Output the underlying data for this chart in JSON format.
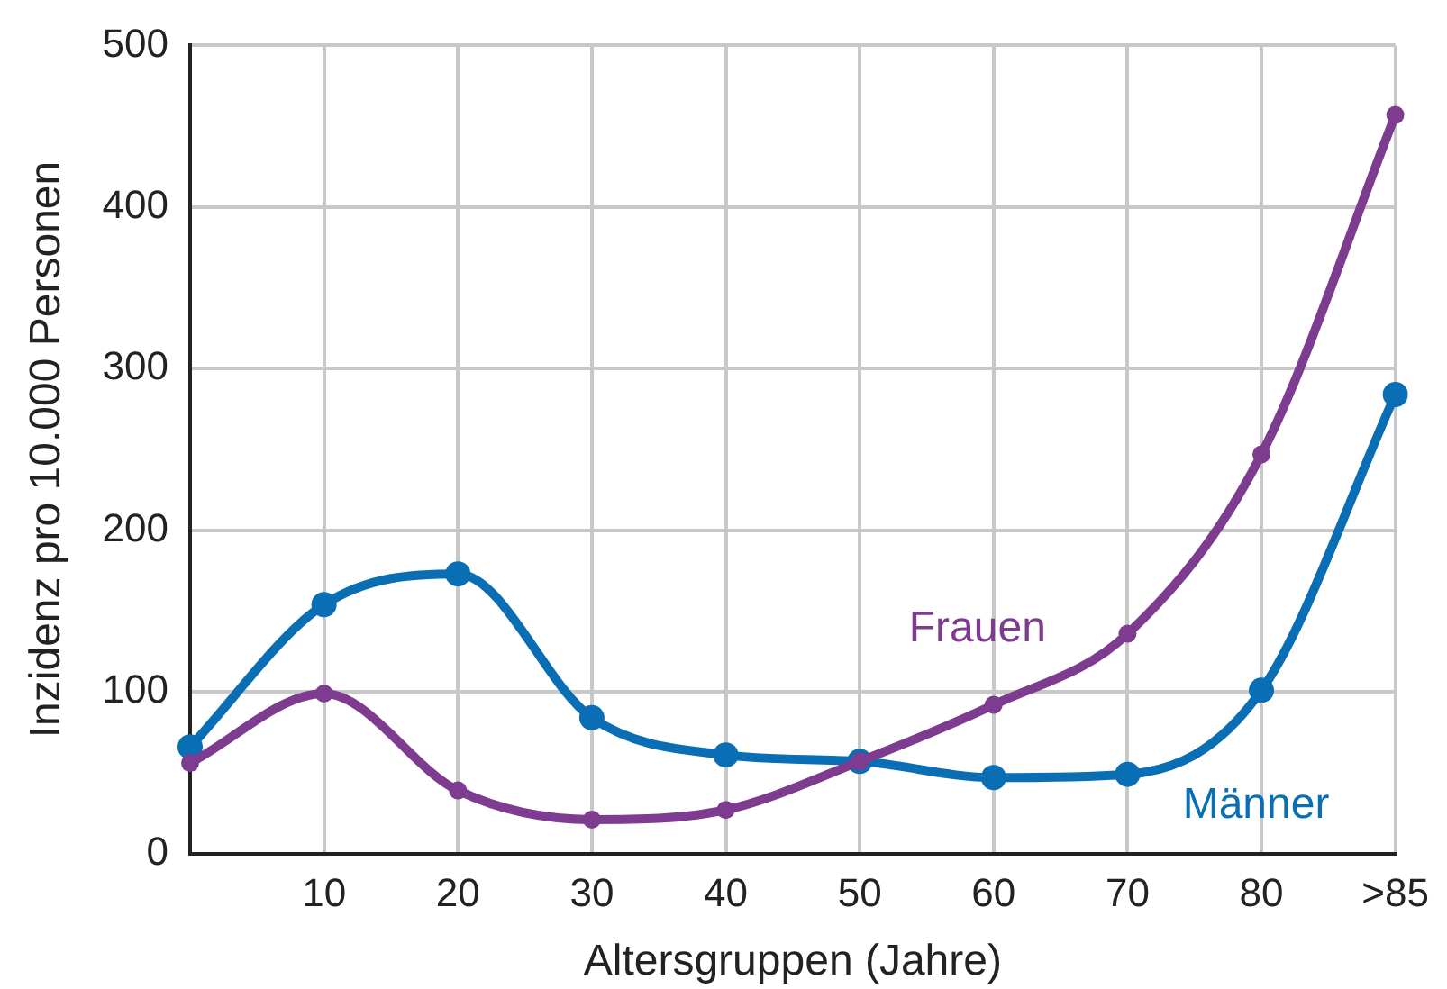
{
  "chart_data": {
    "type": "line",
    "xlabel": "Altersgruppen (Jahre)",
    "ylabel": "Inzidenz pro 10.000 Personen",
    "categories": [
      null,
      "10",
      "20",
      "30",
      "40",
      "50",
      "60",
      "70",
      "80",
      ">85"
    ],
    "ylim": [
      0,
      500
    ],
    "yticks": [
      0,
      100,
      200,
      300,
      400,
      500
    ],
    "grid": true,
    "legend": false,
    "marker": "circle",
    "line_style": "solid",
    "series": [
      {
        "name": "Frauen",
        "color": "#7d3c8f",
        "values": [
          56,
          99,
          39,
          21,
          27,
          57,
          92,
          136,
          247,
          457
        ]
      },
      {
        "name": "Männer",
        "color": "#0a6eb4",
        "values": [
          66,
          154,
          173,
          84,
          61,
          57,
          47,
          49,
          101,
          284
        ]
      }
    ]
  }
}
